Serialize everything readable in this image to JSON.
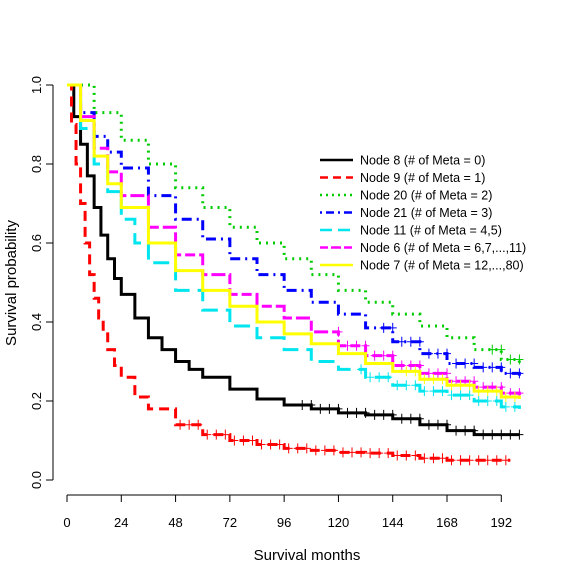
{
  "chart_data": {
    "type": "line",
    "title": "",
    "xlabel": "Survival months",
    "ylabel": "Survival probability",
    "xlim": [
      0,
      204
    ],
    "ylim": [
      0,
      1
    ],
    "x_ticks": [
      0,
      24,
      48,
      72,
      96,
      120,
      144,
      168,
      192
    ],
    "y_ticks": [
      0.0,
      0.2,
      0.4,
      0.6,
      0.8,
      1.0
    ],
    "y_tick_labels": [
      "0.0",
      "0.2",
      "0.4",
      "0.6",
      "0.8",
      "1.0"
    ],
    "grid": false,
    "legend_position": "top-right",
    "series": [
      {
        "name": "Node 8 (# of Meta = 0)",
        "color": "#000000",
        "dash": "solid",
        "points": [
          [
            0,
            1.0
          ],
          [
            3,
            0.92
          ],
          [
            6,
            0.85
          ],
          [
            9,
            0.77
          ],
          [
            12,
            0.69
          ],
          [
            15,
            0.62
          ],
          [
            18,
            0.56
          ],
          [
            21,
            0.51
          ],
          [
            24,
            0.47
          ],
          [
            30,
            0.41
          ],
          [
            36,
            0.36
          ],
          [
            42,
            0.33
          ],
          [
            48,
            0.3
          ],
          [
            54,
            0.28
          ],
          [
            60,
            0.26
          ],
          [
            72,
            0.23
          ],
          [
            84,
            0.205
          ],
          [
            96,
            0.19
          ],
          [
            108,
            0.18
          ],
          [
            120,
            0.17
          ],
          [
            132,
            0.165
          ],
          [
            144,
            0.155
          ],
          [
            156,
            0.14
          ],
          [
            168,
            0.125
          ],
          [
            180,
            0.115
          ],
          [
            192,
            0.115
          ],
          [
            200,
            0.115
          ]
        ],
        "censor_from": 104
      },
      {
        "name": "Node 9 (# of Meta = 1)",
        "color": "#ff0000",
        "dash": "dashed",
        "points": [
          [
            0,
            1.0
          ],
          [
            2,
            0.9
          ],
          [
            4,
            0.8
          ],
          [
            6,
            0.7
          ],
          [
            8,
            0.6
          ],
          [
            10,
            0.52
          ],
          [
            12,
            0.46
          ],
          [
            14,
            0.41
          ],
          [
            16,
            0.37
          ],
          [
            18,
            0.33
          ],
          [
            21,
            0.29
          ],
          [
            24,
            0.26
          ],
          [
            30,
            0.21
          ],
          [
            36,
            0.18
          ],
          [
            48,
            0.14
          ],
          [
            60,
            0.115
          ],
          [
            72,
            0.1
          ],
          [
            84,
            0.09
          ],
          [
            96,
            0.08
          ],
          [
            108,
            0.075
          ],
          [
            120,
            0.07
          ],
          [
            132,
            0.068
          ],
          [
            144,
            0.062
          ],
          [
            156,
            0.055
          ],
          [
            168,
            0.05
          ],
          [
            180,
            0.05
          ],
          [
            192,
            0.05
          ],
          [
            196,
            0.05
          ]
        ],
        "censor_from": 50
      },
      {
        "name": "Node 20 (# of Meta = 2)",
        "color": "#00cc00",
        "dash": "dotted",
        "points": [
          [
            0,
            1.0
          ],
          [
            12,
            0.93
          ],
          [
            24,
            0.86
          ],
          [
            36,
            0.8
          ],
          [
            48,
            0.74
          ],
          [
            60,
            0.69
          ],
          [
            72,
            0.64
          ],
          [
            84,
            0.6
          ],
          [
            96,
            0.56
          ],
          [
            108,
            0.52
          ],
          [
            120,
            0.48
          ],
          [
            132,
            0.45
          ],
          [
            144,
            0.42
          ],
          [
            156,
            0.39
          ],
          [
            168,
            0.36
          ],
          [
            180,
            0.33
          ],
          [
            192,
            0.305
          ],
          [
            200,
            0.295
          ]
        ],
        "censor_from": 188
      },
      {
        "name": "Node 21 (# of Meta = 3)",
        "color": "#0000ff",
        "dash": "dotdash",
        "points": [
          [
            0,
            1.0
          ],
          [
            6,
            0.93
          ],
          [
            12,
            0.87
          ],
          [
            18,
            0.83
          ],
          [
            24,
            0.79
          ],
          [
            36,
            0.72
          ],
          [
            48,
            0.66
          ],
          [
            60,
            0.61
          ],
          [
            72,
            0.56
          ],
          [
            84,
            0.52
          ],
          [
            96,
            0.48
          ],
          [
            108,
            0.45
          ],
          [
            120,
            0.42
          ],
          [
            132,
            0.385
          ],
          [
            144,
            0.35
          ],
          [
            156,
            0.32
          ],
          [
            168,
            0.295
          ],
          [
            180,
            0.285
          ],
          [
            192,
            0.27
          ],
          [
            200,
            0.258
          ]
        ],
        "censor_from": 140
      },
      {
        "name": "Node 11 (# of Meta = 4,5)",
        "color": "#00e5ee",
        "dash": "longdash",
        "points": [
          [
            0,
            1.0
          ],
          [
            6,
            0.89
          ],
          [
            12,
            0.8
          ],
          [
            18,
            0.73
          ],
          [
            24,
            0.66
          ],
          [
            30,
            0.6
          ],
          [
            36,
            0.55
          ],
          [
            48,
            0.48
          ],
          [
            60,
            0.43
          ],
          [
            72,
            0.39
          ],
          [
            84,
            0.36
          ],
          [
            96,
            0.33
          ],
          [
            108,
            0.3
          ],
          [
            120,
            0.28
          ],
          [
            132,
            0.26
          ],
          [
            144,
            0.24
          ],
          [
            156,
            0.225
          ],
          [
            168,
            0.215
          ],
          [
            180,
            0.2
          ],
          [
            192,
            0.185
          ],
          [
            200,
            0.18
          ]
        ],
        "censor_from": 130
      },
      {
        "name": "Node 6 (# of Meta = 6,7,...,11)",
        "color": "#ff00ff",
        "dash": "twodash",
        "points": [
          [
            0,
            1.0
          ],
          [
            6,
            0.92
          ],
          [
            12,
            0.84
          ],
          [
            18,
            0.78
          ],
          [
            24,
            0.72
          ],
          [
            36,
            0.64
          ],
          [
            48,
            0.57
          ],
          [
            60,
            0.52
          ],
          [
            72,
            0.47
          ],
          [
            84,
            0.44
          ],
          [
            96,
            0.41
          ],
          [
            108,
            0.375
          ],
          [
            120,
            0.34
          ],
          [
            132,
            0.315
          ],
          [
            144,
            0.29
          ],
          [
            156,
            0.27
          ],
          [
            168,
            0.25
          ],
          [
            180,
            0.235
          ],
          [
            192,
            0.22
          ],
          [
            200,
            0.215
          ]
        ],
        "censor_from": 120
      },
      {
        "name": "Node 7 (# of Meta = 12,...,80)",
        "color": "#ffff00",
        "dash": "solid",
        "points": [
          [
            0,
            1.0
          ],
          [
            6,
            0.91
          ],
          [
            12,
            0.82
          ],
          [
            18,
            0.75
          ],
          [
            24,
            0.69
          ],
          [
            36,
            0.6
          ],
          [
            48,
            0.53
          ],
          [
            60,
            0.48
          ],
          [
            72,
            0.44
          ],
          [
            84,
            0.4
          ],
          [
            96,
            0.37
          ],
          [
            108,
            0.345
          ],
          [
            120,
            0.32
          ],
          [
            132,
            0.295
          ],
          [
            144,
            0.275
          ],
          [
            156,
            0.255
          ],
          [
            168,
            0.24
          ],
          [
            180,
            0.225
          ],
          [
            192,
            0.21
          ],
          [
            200,
            0.205
          ]
        ],
        "censor_from": 150
      }
    ]
  }
}
